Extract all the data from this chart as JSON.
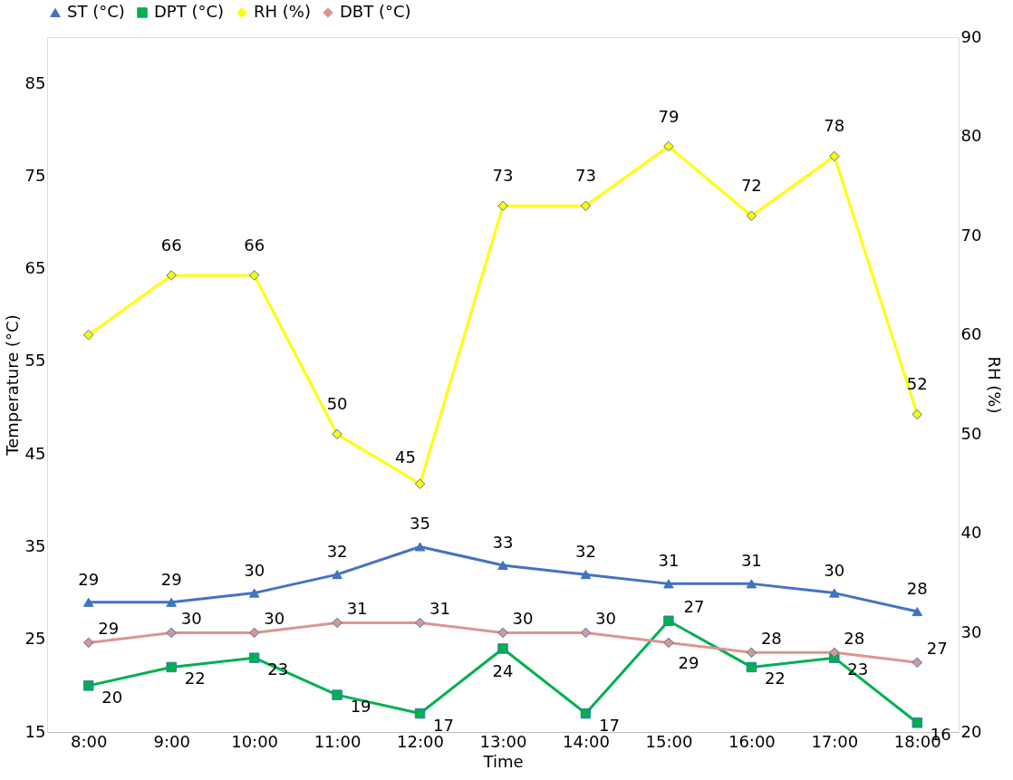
{
  "chart_data": {
    "type": "line",
    "xlabel": "Time",
    "ylabel": "Temperature (°C)",
    "y2label": "RH (%)",
    "categories": [
      "8:00",
      "9:00",
      "10:00",
      "11:00",
      "12:00",
      "13:00",
      "14:00",
      "15:00",
      "16:00",
      "17:00",
      "18:00"
    ],
    "series": [
      {
        "name": "ST (°C)",
        "color": "#4472c4",
        "marker": "triangle",
        "values": [
          29,
          29,
          30,
          32,
          35,
          33,
          32,
          31,
          31,
          30,
          28
        ]
      },
      {
        "name": "DPT (°C)",
        "color": "#00b050",
        "marker": "square",
        "values": [
          20,
          22,
          23,
          19,
          17,
          24,
          17,
          27,
          22,
          23,
          16
        ]
      },
      {
        "name": "RH (%)",
        "color": "#ffff00",
        "marker": "diamond",
        "axis": "y2",
        "values": [
          60,
          66,
          66,
          50,
          45,
          73,
          73,
          79,
          72,
          78,
          52
        ],
        "value_labels": [
          null,
          "66",
          "66",
          "50",
          "45",
          "73",
          "73",
          "79",
          "72",
          "78",
          "52"
        ]
      },
      {
        "name": "DBT (°C)",
        "color": "#d99694",
        "marker": "diamond",
        "axis": "y2",
        "values": [
          29,
          30,
          30,
          31,
          31,
          30,
          30,
          29,
          28,
          28,
          27
        ]
      }
    ],
    "ylim": [
      15,
      90
    ],
    "yticks": [
      15,
      25,
      35,
      45,
      55,
      65,
      75,
      85
    ],
    "y2lim": [
      20,
      90
    ],
    "y2ticks": [
      20,
      30,
      40,
      50,
      60,
      70,
      80,
      90
    ],
    "data_labels": true,
    "legend": "top",
    "grid": false
  }
}
